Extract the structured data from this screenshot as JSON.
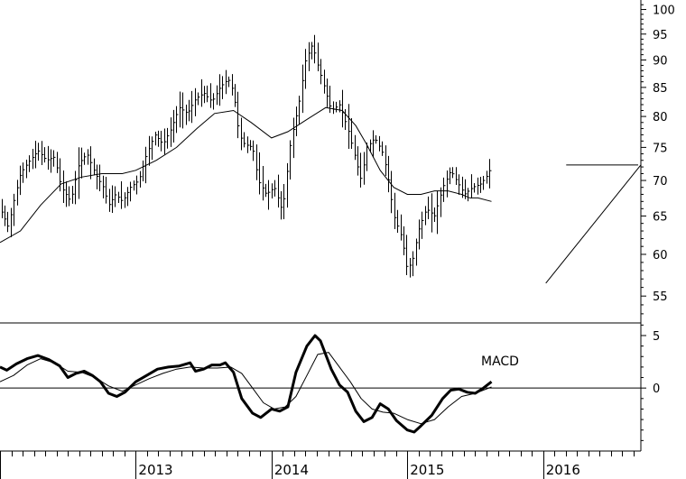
{
  "chart_data": [
    {
      "type": "bar",
      "subtype": "ohlc-with-moving-average",
      "title": "",
      "y_scale": "log",
      "ylim": [
        52,
        102
      ],
      "y_ticks": [
        55,
        60,
        65,
        70,
        75,
        80,
        85,
        90,
        95,
        100
      ],
      "x_range": [
        2012.0,
        2016.72
      ],
      "x_tick_labels": [
        {
          "label": "2013",
          "x": 2013.0
        },
        {
          "label": "2014",
          "x": 2014.0
        },
        {
          "label": "2015",
          "x": 2015.0
        },
        {
          "label": "2016",
          "x": 2016.0
        }
      ],
      "price_path": [
        [
          2012.0,
          66
        ],
        [
          2012.06,
          63.5
        ],
        [
          2012.1,
          67
        ],
        [
          2012.15,
          71
        ],
        [
          2012.2,
          72.5
        ],
        [
          2012.28,
          74.5
        ],
        [
          2012.34,
          73
        ],
        [
          2012.4,
          73.5
        ],
        [
          2012.45,
          69
        ],
        [
          2012.52,
          67
        ],
        [
          2012.58,
          72.5
        ],
        [
          2012.64,
          74
        ],
        [
          2012.7,
          71
        ],
        [
          2012.76,
          69
        ],
        [
          2012.8,
          66.5
        ],
        [
          2012.85,
          68
        ],
        [
          2012.9,
          67
        ],
        [
          2012.96,
          69
        ],
        [
          2013.02,
          70
        ],
        [
          2013.08,
          74
        ],
        [
          2013.14,
          77
        ],
        [
          2013.2,
          75.5
        ],
        [
          2013.26,
          78
        ],
        [
          2013.32,
          81.5
        ],
        [
          2013.38,
          80.5
        ],
        [
          2013.44,
          83
        ],
        [
          2013.5,
          84
        ],
        [
          2013.56,
          82.5
        ],
        [
          2013.62,
          85
        ],
        [
          2013.68,
          86.5
        ],
        [
          2013.72,
          84
        ],
        [
          2013.76,
          77
        ],
        [
          2013.8,
          75.5
        ],
        [
          2013.86,
          75
        ],
        [
          2013.9,
          70
        ],
        [
          2013.96,
          68
        ],
        [
          2014.02,
          69
        ],
        [
          2014.08,
          65.5
        ],
        [
          2014.14,
          76
        ],
        [
          2014.2,
          82
        ],
        [
          2014.25,
          90
        ],
        [
          2014.3,
          93
        ],
        [
          2014.34,
          89
        ],
        [
          2014.4,
          84
        ],
        [
          2014.44,
          81
        ],
        [
          2014.5,
          82
        ],
        [
          2014.56,
          78
        ],
        [
          2014.62,
          73
        ],
        [
          2014.66,
          70
        ],
        [
          2014.7,
          75
        ],
        [
          2014.76,
          76.5
        ],
        [
          2014.82,
          74
        ],
        [
          2014.86,
          70
        ],
        [
          2014.9,
          65
        ],
        [
          2014.96,
          62
        ],
        [
          2015.0,
          58
        ],
        [
          2015.04,
          59.5
        ],
        [
          2015.08,
          63
        ],
        [
          2015.14,
          66
        ],
        [
          2015.2,
          65
        ],
        [
          2015.26,
          69
        ],
        [
          2015.32,
          71.5
        ],
        [
          2015.36,
          70
        ],
        [
          2015.42,
          68
        ],
        [
          2015.48,
          69
        ],
        [
          2015.54,
          69.5
        ],
        [
          2015.58,
          70.5
        ],
        [
          2015.62,
          72
        ]
      ],
      "moving_average": [
        [
          2012.0,
          61.5
        ],
        [
          2012.15,
          63
        ],
        [
          2012.3,
          66.5
        ],
        [
          2012.45,
          69.5
        ],
        [
          2012.6,
          70.5
        ],
        [
          2012.75,
          71
        ],
        [
          2012.9,
          71
        ],
        [
          2013.0,
          71.5
        ],
        [
          2013.15,
          73
        ],
        [
          2013.3,
          75
        ],
        [
          2013.45,
          78
        ],
        [
          2013.58,
          80.5
        ],
        [
          2013.72,
          81
        ],
        [
          2013.85,
          79
        ],
        [
          2014.0,
          76.5
        ],
        [
          2014.12,
          77.5
        ],
        [
          2014.26,
          79.5
        ],
        [
          2014.4,
          81.5
        ],
        [
          2014.52,
          81
        ],
        [
          2014.62,
          78.5
        ],
        [
          2014.7,
          75.5
        ],
        [
          2014.8,
          71.5
        ],
        [
          2014.9,
          69
        ],
        [
          2015.0,
          68
        ],
        [
          2015.1,
          68
        ],
        [
          2015.2,
          68.5
        ],
        [
          2015.3,
          68.5
        ],
        [
          2015.4,
          68
        ],
        [
          2015.46,
          67.5
        ],
        [
          2015.52,
          67.5
        ],
        [
          2015.62,
          67
        ]
      ],
      "trendlines": [
        {
          "kind": "resistance",
          "from": [
            2016.17,
            72.3
          ],
          "to": [
            2016.7,
            72.3
          ]
        },
        {
          "kind": "support",
          "from": [
            2016.02,
            56.5
          ],
          "to": [
            2016.72,
            72.3
          ]
        }
      ]
    },
    {
      "type": "line",
      "subtype": "macd",
      "annotation": "MACD",
      "ylim": [
        -6,
        6.2
      ],
      "y_ticks": [
        0,
        5
      ],
      "series": [
        {
          "style": "thick",
          "points": [
            [
              2012.0,
              2.0
            ],
            [
              2012.05,
              1.7
            ],
            [
              2012.12,
              2.3
            ],
            [
              2012.2,
              2.8
            ],
            [
              2012.28,
              3.1
            ],
            [
              2012.36,
              2.7
            ],
            [
              2012.44,
              2.1
            ],
            [
              2012.5,
              1.0
            ],
            [
              2012.56,
              1.4
            ],
            [
              2012.62,
              1.6
            ],
            [
              2012.68,
              1.2
            ],
            [
              2012.74,
              0.6
            ],
            [
              2012.8,
              -0.5
            ],
            [
              2012.86,
              -0.8
            ],
            [
              2012.92,
              -0.4
            ],
            [
              2013.0,
              0.6
            ],
            [
              2013.08,
              1.2
            ],
            [
              2013.16,
              1.8
            ],
            [
              2013.24,
              2.0
            ],
            [
              2013.32,
              2.1
            ],
            [
              2013.4,
              2.4
            ],
            [
              2013.44,
              1.6
            ],
            [
              2013.5,
              1.8
            ],
            [
              2013.56,
              2.2
            ],
            [
              2013.62,
              2.2
            ],
            [
              2013.66,
              2.4
            ],
            [
              2013.72,
              1.5
            ],
            [
              2013.78,
              -1.0
            ],
            [
              2013.86,
              -2.4
            ],
            [
              2013.92,
              -2.8
            ],
            [
              2014.0,
              -2.0
            ],
            [
              2014.06,
              -2.2
            ],
            [
              2014.12,
              -1.8
            ],
            [
              2014.18,
              1.5
            ],
            [
              2014.26,
              4.0
            ],
            [
              2014.32,
              5.0
            ],
            [
              2014.36,
              4.5
            ],
            [
              2014.44,
              1.8
            ],
            [
              2014.5,
              0.3
            ],
            [
              2014.56,
              -0.4
            ],
            [
              2014.62,
              -2.2
            ],
            [
              2014.68,
              -3.2
            ],
            [
              2014.74,
              -2.8
            ],
            [
              2014.8,
              -1.5
            ],
            [
              2014.86,
              -2.0
            ],
            [
              2014.92,
              -3.1
            ],
            [
              2015.0,
              -4.0
            ],
            [
              2015.05,
              -4.2
            ],
            [
              2015.1,
              -3.6
            ],
            [
              2015.18,
              -2.6
            ],
            [
              2015.26,
              -1.0
            ],
            [
              2015.32,
              -0.2
            ],
            [
              2015.38,
              -0.1
            ],
            [
              2015.44,
              -0.4
            ],
            [
              2015.5,
              -0.5
            ],
            [
              2015.56,
              0.0
            ],
            [
              2015.62,
              0.6
            ]
          ]
        },
        {
          "style": "thin",
          "points": [
            [
              2012.0,
              0.6
            ],
            [
              2012.1,
              1.2
            ],
            [
              2012.2,
              2.2
            ],
            [
              2012.3,
              2.8
            ],
            [
              2012.4,
              2.4
            ],
            [
              2012.5,
              1.6
            ],
            [
              2012.6,
              1.5
            ],
            [
              2012.7,
              1.0
            ],
            [
              2012.8,
              0.2
            ],
            [
              2012.9,
              -0.3
            ],
            [
              2013.0,
              0.3
            ],
            [
              2013.1,
              0.9
            ],
            [
              2013.2,
              1.4
            ],
            [
              2013.3,
              1.8
            ],
            [
              2013.4,
              2.0
            ],
            [
              2013.5,
              1.9
            ],
            [
              2013.6,
              1.9
            ],
            [
              2013.7,
              2.0
            ],
            [
              2013.78,
              1.4
            ],
            [
              2013.86,
              0.0
            ],
            [
              2013.94,
              -1.4
            ],
            [
              2014.02,
              -2.0
            ],
            [
              2014.1,
              -1.8
            ],
            [
              2014.18,
              -0.8
            ],
            [
              2014.26,
              1.2
            ],
            [
              2014.34,
              3.2
            ],
            [
              2014.42,
              3.4
            ],
            [
              2014.5,
              2.0
            ],
            [
              2014.58,
              0.6
            ],
            [
              2014.66,
              -1.0
            ],
            [
              2014.74,
              -2.0
            ],
            [
              2014.82,
              -2.3
            ],
            [
              2014.9,
              -2.4
            ],
            [
              2015.0,
              -3.0
            ],
            [
              2015.1,
              -3.4
            ],
            [
              2015.2,
              -3.0
            ],
            [
              2015.3,
              -1.8
            ],
            [
              2015.4,
              -0.8
            ],
            [
              2015.5,
              -0.5
            ],
            [
              2015.62,
              0.1
            ]
          ]
        }
      ]
    }
  ]
}
